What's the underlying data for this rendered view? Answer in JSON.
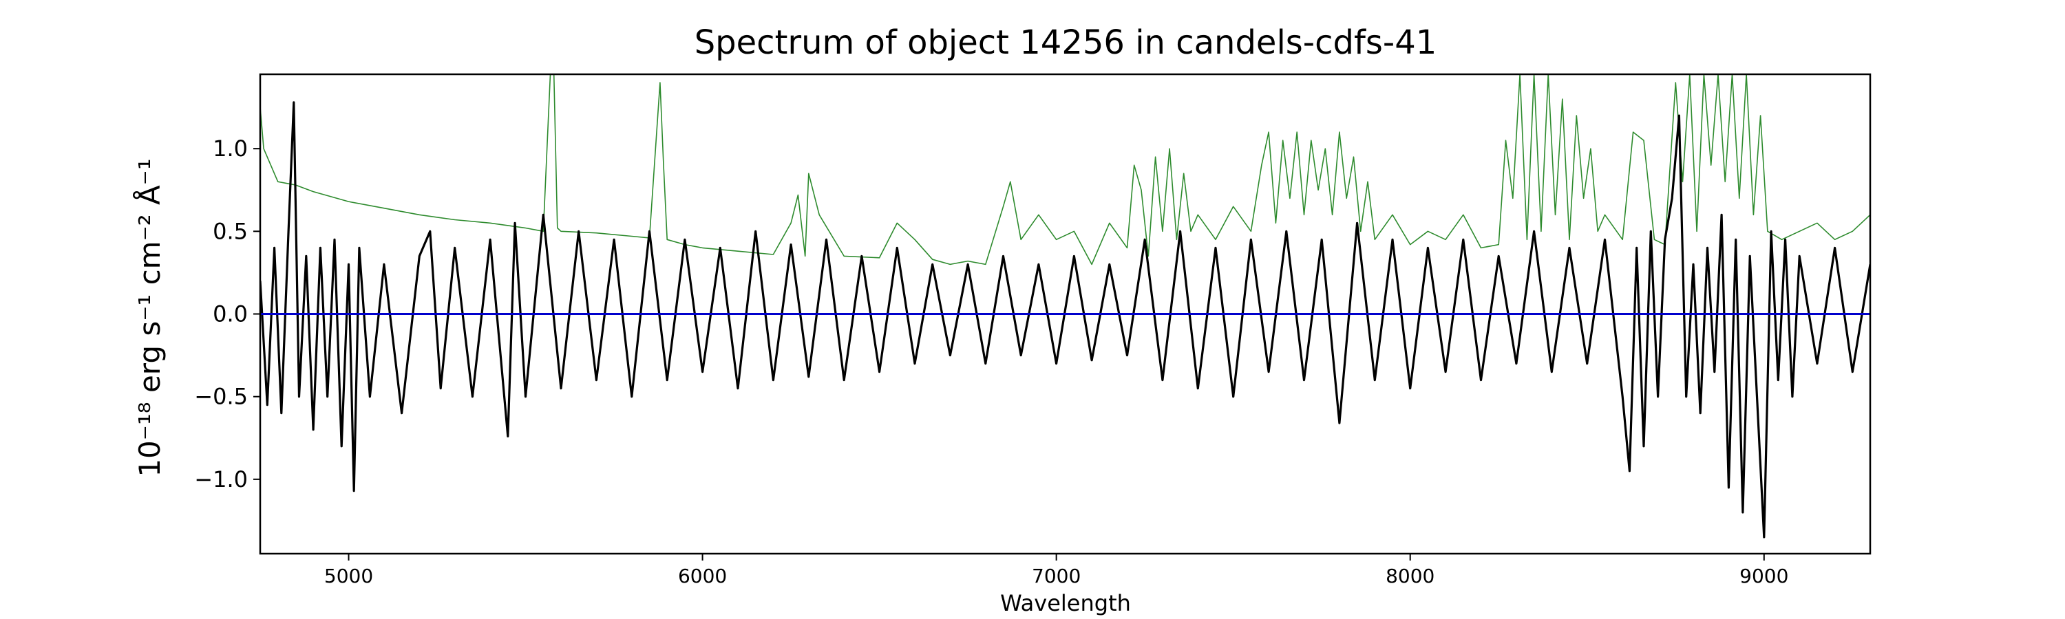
{
  "chart_data": {
    "type": "line",
    "title": "Spectrum of object 14256 in candels-cdfs-41",
    "xlabel": "Wavelength",
    "ylabel": "10⁻¹⁸ erg s⁻¹ cm⁻² Å⁻¹",
    "xlim": [
      4750,
      9300
    ],
    "ylim": [
      -1.45,
      1.45
    ],
    "xticks": [
      5000,
      6000,
      7000,
      8000,
      9000
    ],
    "xtick_labels": [
      "5000",
      "6000",
      "7000",
      "8000",
      "9000"
    ],
    "yticks": [
      1.0,
      0.5,
      0.0,
      -0.5,
      -1.0
    ],
    "ytick_labels": [
      "1.0",
      "0.5",
      "0.0",
      "−0.5",
      "−1.0"
    ],
    "grid": false,
    "legend": "none",
    "series": [
      {
        "role": "flux",
        "color": "#000000",
        "x": [
          4750,
          4770,
          4790,
          4810,
          4830,
          4845,
          4860,
          4880,
          4900,
          4920,
          4940,
          4960,
          4980,
          5000,
          5015,
          5030,
          5060,
          5100,
          5150,
          5200,
          5230,
          5260,
          5300,
          5350,
          5400,
          5450,
          5470,
          5500,
          5550,
          5600,
          5650,
          5700,
          5750,
          5800,
          5850,
          5900,
          5950,
          6000,
          6050,
          6100,
          6150,
          6200,
          6250,
          6300,
          6350,
          6400,
          6450,
          6500,
          6550,
          6600,
          6650,
          6700,
          6750,
          6800,
          6850,
          6900,
          6950,
          7000,
          7050,
          7100,
          7150,
          7200,
          7250,
          7300,
          7350,
          7400,
          7450,
          7500,
          7550,
          7600,
          7650,
          7700,
          7750,
          7800,
          7850,
          7900,
          7950,
          8000,
          8050,
          8100,
          8150,
          8200,
          8250,
          8300,
          8350,
          8400,
          8450,
          8500,
          8550,
          8600,
          8620,
          8640,
          8660,
          8680,
          8700,
          8720,
          8740,
          8760,
          8780,
          8800,
          8820,
          8840,
          8860,
          8880,
          8900,
          8920,
          8940,
          8960,
          8980,
          9000,
          9020,
          9040,
          9060,
          9080,
          9100,
          9150,
          9200,
          9250,
          9300
        ],
        "y": [
          0.2,
          -0.55,
          0.4,
          -0.6,
          0.5,
          1.28,
          -0.5,
          0.35,
          -0.7,
          0.4,
          -0.5,
          0.45,
          -0.8,
          0.3,
          -1.07,
          0.4,
          -0.5,
          0.3,
          -0.6,
          0.35,
          0.5,
          -0.45,
          0.4,
          -0.5,
          0.45,
          -0.74,
          0.55,
          -0.5,
          0.6,
          -0.45,
          0.5,
          -0.4,
          0.45,
          -0.5,
          0.5,
          -0.4,
          0.45,
          -0.35,
          0.4,
          -0.45,
          0.5,
          -0.4,
          0.42,
          -0.38,
          0.45,
          -0.4,
          0.35,
          -0.35,
          0.4,
          -0.3,
          0.3,
          -0.25,
          0.3,
          -0.3,
          0.35,
          -0.25,
          0.3,
          -0.3,
          0.35,
          -0.28,
          0.3,
          -0.25,
          0.45,
          -0.4,
          0.5,
          -0.45,
          0.4,
          -0.5,
          0.45,
          -0.35,
          0.5,
          -0.4,
          0.45,
          -0.66,
          0.55,
          -0.4,
          0.45,
          -0.45,
          0.4,
          -0.35,
          0.45,
          -0.4,
          0.35,
          -0.3,
          0.5,
          -0.35,
          0.4,
          -0.3,
          0.45,
          -0.5,
          -0.95,
          0.4,
          -0.8,
          0.5,
          -0.5,
          0.45,
          0.7,
          1.2,
          -0.5,
          0.3,
          -0.6,
          0.4,
          -0.35,
          0.6,
          -1.05,
          0.45,
          -1.2,
          0.35,
          -0.5,
          -1.35,
          0.5,
          -0.4,
          0.45,
          -0.5,
          0.35,
          -0.3,
          0.4,
          -0.35,
          0.3
        ]
      },
      {
        "role": "error",
        "color": "#2e8b2e",
        "x": [
          4750,
          4760,
          4780,
          4800,
          4850,
          4900,
          5000,
          5100,
          5200,
          5300,
          5400,
          5500,
          5550,
          5570,
          5580,
          5590,
          5600,
          5700,
          5800,
          5850,
          5880,
          5890,
          5900,
          5950,
          6000,
          6100,
          6200,
          6250,
          6270,
          6290,
          6300,
          6330,
          6400,
          6500,
          6550,
          6600,
          6650,
          6700,
          6750,
          6800,
          6850,
          6870,
          6900,
          6950,
          7000,
          7050,
          7100,
          7150,
          7200,
          7220,
          7240,
          7260,
          7280,
          7300,
          7320,
          7340,
          7360,
          7380,
          7400,
          7450,
          7500,
          7550,
          7580,
          7600,
          7620,
          7640,
          7660,
          7680,
          7700,
          7720,
          7740,
          7760,
          7780,
          7800,
          7820,
          7840,
          7860,
          7880,
          7900,
          7950,
          8000,
          8050,
          8100,
          8150,
          8200,
          8250,
          8270,
          8290,
          8310,
          8330,
          8350,
          8370,
          8390,
          8410,
          8430,
          8450,
          8470,
          8490,
          8510,
          8530,
          8550,
          8600,
          8630,
          8660,
          8690,
          8720,
          8750,
          8770,
          8790,
          8810,
          8830,
          8850,
          8870,
          8890,
          8910,
          8930,
          8950,
          8970,
          8990,
          9010,
          9050,
          9100,
          9150,
          9200,
          9250,
          9300
        ],
        "y": [
          1.25,
          1.0,
          0.9,
          0.8,
          0.78,
          0.74,
          0.68,
          0.64,
          0.6,
          0.57,
          0.55,
          0.52,
          0.5,
          1.45,
          1.45,
          0.52,
          0.5,
          0.49,
          0.47,
          0.46,
          1.4,
          0.9,
          0.45,
          0.42,
          0.4,
          0.38,
          0.36,
          0.55,
          0.72,
          0.35,
          0.85,
          0.6,
          0.35,
          0.34,
          0.55,
          0.45,
          0.33,
          0.3,
          0.32,
          0.3,
          0.65,
          0.8,
          0.45,
          0.6,
          0.45,
          0.5,
          0.3,
          0.55,
          0.4,
          0.9,
          0.75,
          0.35,
          0.95,
          0.5,
          1.0,
          0.45,
          0.85,
          0.5,
          0.6,
          0.45,
          0.65,
          0.5,
          0.9,
          1.1,
          0.55,
          1.05,
          0.7,
          1.1,
          0.6,
          1.05,
          0.75,
          1.0,
          0.6,
          1.1,
          0.7,
          0.95,
          0.5,
          0.8,
          0.45,
          0.6,
          0.42,
          0.5,
          0.45,
          0.6,
          0.4,
          0.42,
          1.05,
          0.7,
          1.45,
          0.45,
          1.45,
          0.5,
          1.45,
          0.6,
          1.3,
          0.45,
          1.2,
          0.7,
          1.0,
          0.5,
          0.6,
          0.45,
          1.1,
          1.05,
          0.45,
          0.42,
          1.4,
          0.8,
          1.45,
          0.5,
          1.45,
          0.9,
          1.45,
          0.8,
          1.45,
          0.7,
          1.45,
          0.6,
          1.2,
          0.5,
          0.45,
          0.5,
          0.55,
          0.45,
          0.5,
          0.6
        ]
      },
      {
        "role": "zero",
        "color": "#0000cc",
        "x": [
          4750,
          9300
        ],
        "y": [
          0,
          0
        ]
      }
    ]
  }
}
